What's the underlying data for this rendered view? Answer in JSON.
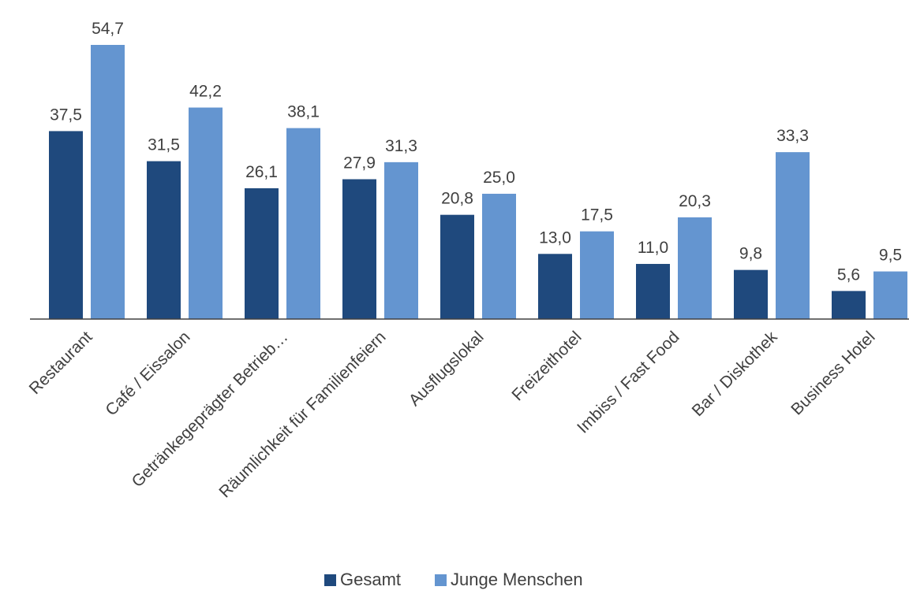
{
  "chart_data": {
    "type": "bar",
    "categories": [
      "Restaurant",
      "Café / Eissalon",
      "Getränkegeprägter Betrieb…",
      "Räumlichkeit für Familienfeiern",
      "Ausflugslokal",
      "Freizeithotel",
      "Imbiss / Fast Food",
      "Bar / Diskothek",
      "Business Hotel"
    ],
    "series": [
      {
        "name": "Gesamt",
        "color": "#1f497d",
        "values": [
          37.5,
          31.5,
          26.1,
          27.9,
          20.8,
          13.0,
          11.0,
          9.8,
          5.6
        ],
        "labels": [
          "37,5",
          "31,5",
          "26,1",
          "27,9",
          "20,8",
          "13,0",
          "11,0",
          "9,8",
          "5,6"
        ]
      },
      {
        "name": "Junge Menschen",
        "color": "#6495d0",
        "values": [
          54.7,
          42.2,
          38.1,
          31.3,
          25.0,
          17.5,
          20.3,
          33.3,
          9.5
        ],
        "labels": [
          "54,7",
          "42,2",
          "38,1",
          "31,3",
          "25,0",
          "17,5",
          "20,3",
          "33,3",
          "9,5"
        ]
      }
    ],
    "ylim": [
      0,
      60
    ],
    "grid": false,
    "legend_position": "bottom"
  }
}
